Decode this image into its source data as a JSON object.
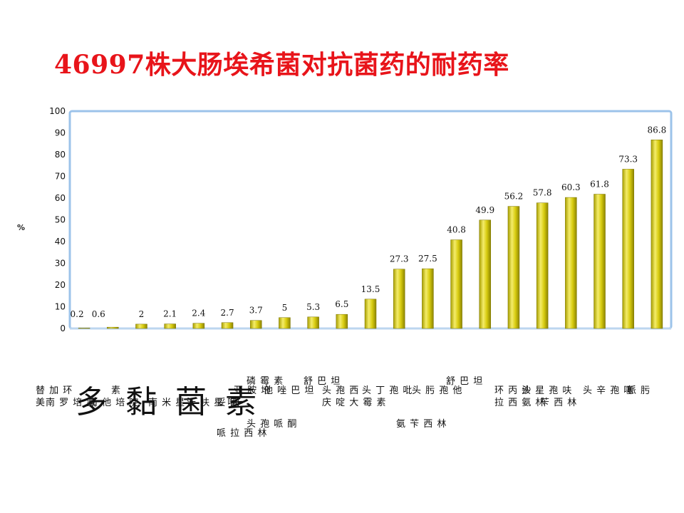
{
  "title": "46997株大肠埃希菌对抗菌药的耐药率",
  "ylabel": "%",
  "overlay_text": "多 黏 菌 素",
  "x_label_fragments": [
    "替 加 环",
    "美南 罗 培 氨",
    "素",
    "南 他 培 啶",
    "南 米 星",
    "沃 呋 星 喃",
    "妥 因",
    "亚 胺 培",
    "磷 霉 素",
    "他 唑 巴 坦",
    "舒 巴 坦",
    "头 孢 西",
    "头 丁 孢 吡",
    "庆 啶 大 霉 素",
    "头 孢 哌 酮",
    "哌 拉 西 林",
    "头 肟 孢 他",
    "氨 苄 西 林",
    "舒 巴 坦",
    "环 丙 沙",
    "拉 西 氨 林",
    "头 星 孢 呋",
    "苄 西 林",
    "头 辛 孢 噻",
    "哌 肟"
  ],
  "chart_data": {
    "type": "bar",
    "title": "46997株大肠埃希菌对抗菌药的耐药率",
    "ylabel": "%",
    "xlabel": "",
    "ylim": [
      0,
      100
    ],
    "yticks": [
      0,
      10,
      20,
      30,
      40,
      50,
      60,
      70,
      80,
      90,
      100
    ],
    "grid": false,
    "legend": "none",
    "values": [
      0.2,
      0.6,
      2,
      2.1,
      2.4,
      2.7,
      3.7,
      5,
      5.3,
      6.5,
      13.5,
      27.3,
      27.5,
      40.8,
      49.9,
      56.2,
      57.8,
      60.3,
      61.8,
      73.3,
      86.8
    ],
    "data_labels": [
      "0.2",
      "0.6",
      "2",
      "2.1",
      "2.4",
      "2.7",
      "3.7",
      "5",
      "5.3",
      "6.5",
      "13.5",
      "27.3",
      "27.5",
      "40.8",
      "49.9",
      "56.2",
      "57.8",
      "60.3",
      "61.8",
      "73.3",
      "86.8"
    ],
    "colors": {
      "bar": "#d8cc10",
      "bar_highlight": "#f4ec6a",
      "bar_shadow": "#8c8400",
      "frame": "#9cc3ea",
      "title": "#e8141a"
    }
  }
}
